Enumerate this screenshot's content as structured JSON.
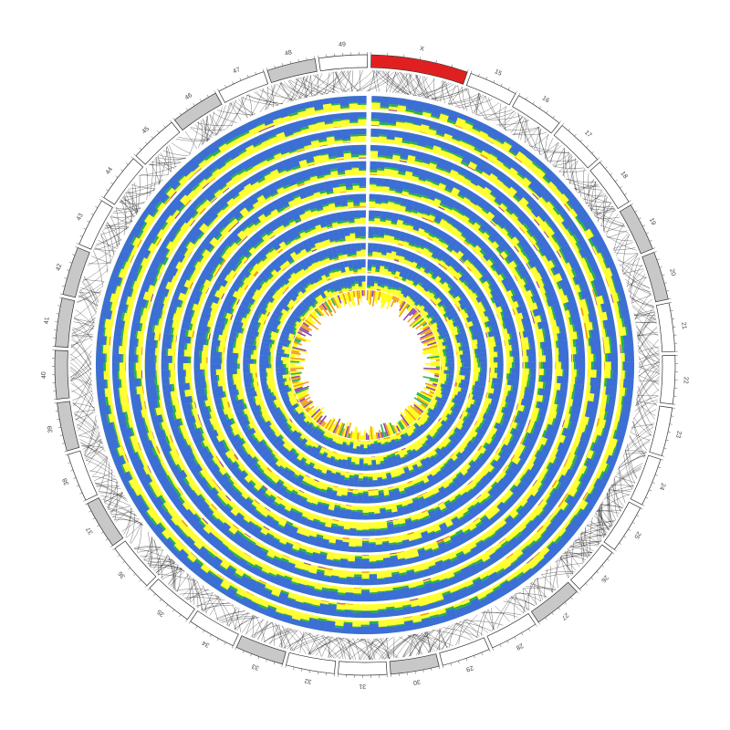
{
  "chart_data": {
    "type": "circular-stacked-bar",
    "description_labels": {
      "chromosome_labels": [
        "X",
        "15",
        "16",
        "17",
        "18",
        "19",
        "20",
        "21",
        "22",
        "23",
        "24",
        "25",
        "26",
        "27",
        "28",
        "29",
        "30",
        "31",
        "32",
        "33",
        "34",
        "35",
        "36",
        "37",
        "38",
        "39",
        "40",
        "41",
        "42",
        "43",
        "44",
        "45",
        "46",
        "47",
        "48",
        "49"
      ]
    },
    "chromosomes": [
      {
        "label": "X",
        "size": 6,
        "color": "#e02020"
      },
      {
        "label": "15",
        "size": 3,
        "color": "#ffffff"
      },
      {
        "label": "16",
        "size": 3,
        "color": "#ffffff"
      },
      {
        "label": "17",
        "size": 3,
        "color": "#ffffff"
      },
      {
        "label": "18",
        "size": 3,
        "color": "#ffffff"
      },
      {
        "label": "19",
        "size": 3,
        "color": "#c8c8c8"
      },
      {
        "label": "20",
        "size": 3,
        "color": "#c8c8c8"
      },
      {
        "label": "21",
        "size": 3,
        "color": "#ffffff"
      },
      {
        "label": "22",
        "size": 3,
        "color": "#ffffff"
      },
      {
        "label": "23",
        "size": 3,
        "color": "#ffffff"
      },
      {
        "label": "24",
        "size": 3,
        "color": "#ffffff"
      },
      {
        "label": "25",
        "size": 3,
        "color": "#ffffff"
      },
      {
        "label": "26",
        "size": 3,
        "color": "#ffffff"
      },
      {
        "label": "27",
        "size": 3,
        "color": "#c8c8c8"
      },
      {
        "label": "28",
        "size": 3,
        "color": "#ffffff"
      },
      {
        "label": "29",
        "size": 3,
        "color": "#ffffff"
      },
      {
        "label": "30",
        "size": 3,
        "color": "#c8c8c8"
      },
      {
        "label": "31",
        "size": 3,
        "color": "#ffffff"
      },
      {
        "label": "32",
        "size": 3,
        "color": "#ffffff"
      },
      {
        "label": "33",
        "size": 3,
        "color": "#c8c8c8"
      },
      {
        "label": "34",
        "size": 3,
        "color": "#ffffff"
      },
      {
        "label": "35",
        "size": 3,
        "color": "#ffffff"
      },
      {
        "label": "36",
        "size": 3,
        "color": "#ffffff"
      },
      {
        "label": "37",
        "size": 3,
        "color": "#c8c8c8"
      },
      {
        "label": "38",
        "size": 3,
        "color": "#ffffff"
      },
      {
        "label": "39",
        "size": 3,
        "color": "#c8c8c8"
      },
      {
        "label": "40",
        "size": 3,
        "color": "#c8c8c8"
      },
      {
        "label": "41",
        "size": 3,
        "color": "#c8c8c8"
      },
      {
        "label": "42",
        "size": 3,
        "color": "#c8c8c8"
      },
      {
        "label": "43",
        "size": 3,
        "color": "#ffffff"
      },
      {
        "label": "44",
        "size": 3,
        "color": "#ffffff"
      },
      {
        "label": "45",
        "size": 3,
        "color": "#ffffff"
      },
      {
        "label": "46",
        "size": 3,
        "color": "#c8c8c8"
      },
      {
        "label": "47",
        "size": 3,
        "color": "#ffffff"
      },
      {
        "label": "48",
        "size": 3,
        "color": "#c8c8c8"
      },
      {
        "label": "49",
        "size": 3,
        "color": "#ffffff"
      }
    ],
    "track_count": 12,
    "bins_per_track": 140,
    "category_colors": [
      "#3b6fd6",
      "#26b14c",
      "#ffff00",
      "#f39c12",
      "#8e44ad"
    ],
    "random_seed": 20240517,
    "grid": false
  }
}
